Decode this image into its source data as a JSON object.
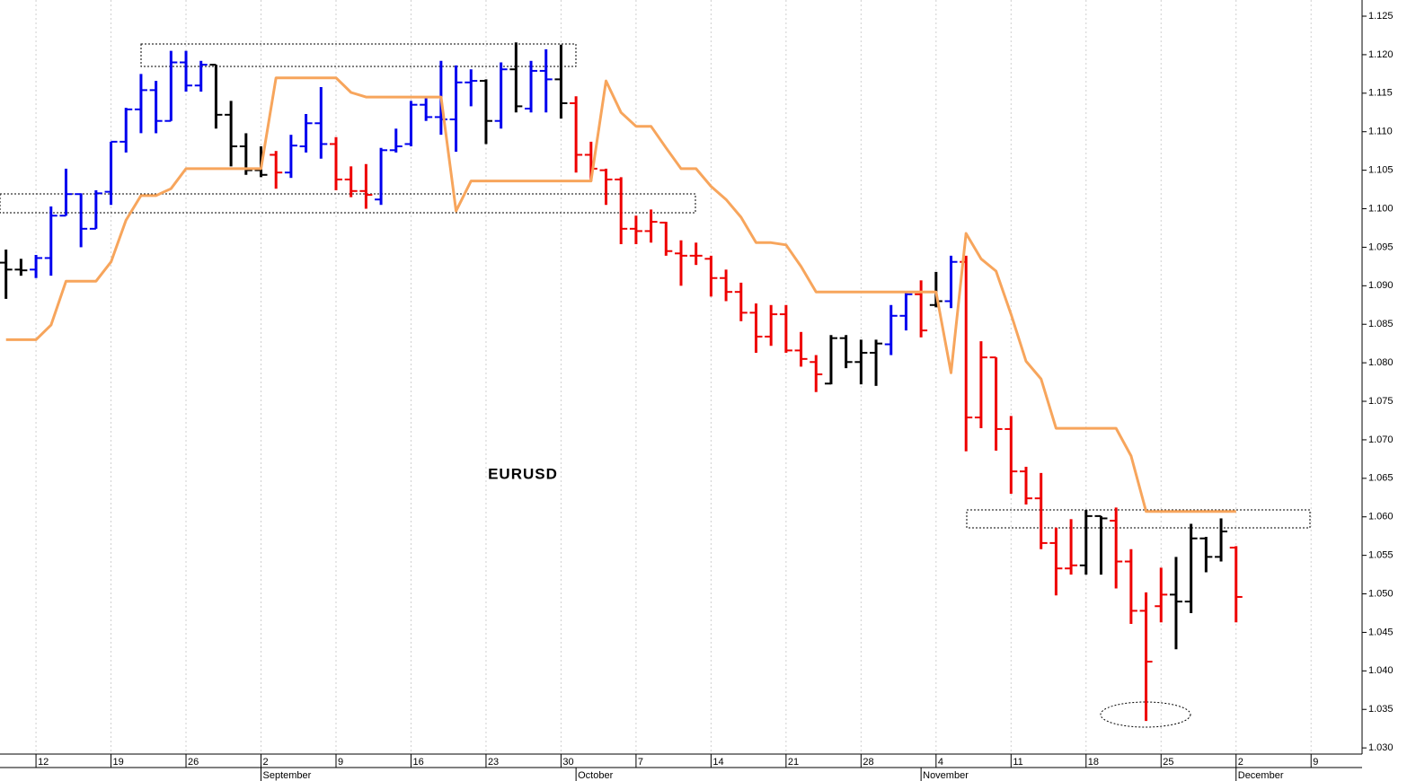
{
  "chart_data": {
    "type": "ohlc",
    "title": "EURUSD",
    "x": [
      -2,
      -1,
      0,
      1,
      2,
      3,
      4,
      5,
      6,
      7,
      8,
      9,
      10,
      11,
      12,
      13,
      14,
      15,
      16,
      17,
      18,
      19,
      20,
      21,
      22,
      23,
      24,
      25,
      26,
      27,
      28,
      29,
      30,
      31,
      32,
      33,
      34,
      35,
      36,
      37,
      38,
      39,
      40,
      41,
      42,
      43,
      44,
      45,
      46,
      47,
      48,
      49,
      50,
      51,
      52,
      53,
      54,
      55,
      56,
      57,
      58,
      59,
      60,
      61,
      62,
      63,
      64,
      65,
      66,
      67,
      68,
      69,
      70,
      71,
      72,
      73,
      74,
      75,
      76,
      77,
      78,
      79,
      80
    ],
    "open": [
      1.093,
      1.0921,
      1.0921,
      1.0936,
      1.0991,
      1.1019,
      1.0974,
      1.1022,
      1.1087,
      1.1129,
      1.1154,
      1.1114,
      1.119,
      1.116,
      1.1187,
      1.1122,
      1.1081,
      1.105,
      1.107,
      1.1047,
      1.1081,
      1.1111,
      1.1084,
      1.1038,
      1.1023,
      1.1012,
      1.1076,
      1.1084,
      1.1135,
      1.1119,
      1.1116,
      1.1164,
      1.1166,
      1.1114,
      1.1181,
      1.113,
      1.1179,
      1.1168,
      1.1137,
      1.107,
      1.105,
      1.1038,
      1.0974,
      1.0971,
      1.0982,
      1.0942,
      1.0939,
      1.0935,
      1.091,
      1.0892,
      1.0865,
      1.0834,
      1.0863,
      1.0816,
      1.0801,
      1.0773,
      1.0832,
      1.0801,
      1.0813,
      1.0824,
      1.0861,
      1.0889,
      1.0875,
      1.088,
      1.0931,
      1.0729,
      1.0807,
      1.0714,
      1.0659,
      1.0624,
      1.0566,
      1.0533,
      1.0537,
      1.0601,
      1.0595,
      1.0542,
      1.0478,
      1.0484,
      1.0499,
      1.049,
      1.0572,
      1.0548,
      1.056
    ],
    "high": [
      1.0947,
      1.0935,
      1.094,
      1.1003,
      1.1052,
      1.102,
      1.1024,
      1.1087,
      1.1131,
      1.1175,
      1.1166,
      1.1205,
      1.1205,
      1.1192,
      1.1187,
      1.114,
      1.1098,
      1.1081,
      1.1075,
      1.1096,
      1.1123,
      1.1158,
      1.1093,
      1.1055,
      1.1058,
      1.1079,
      1.1104,
      1.114,
      1.1146,
      1.1192,
      1.1186,
      1.1181,
      1.1168,
      1.119,
      1.1216,
      1.1192,
      1.1207,
      1.1213,
      1.1146,
      1.1087,
      1.1052,
      1.1041,
      1.0991,
      1.0999,
      1.0983,
      1.0959,
      1.0956,
      1.0939,
      1.0921,
      1.0904,
      1.0877,
      1.0875,
      1.0875,
      1.084,
      1.081,
      1.0836,
      1.0836,
      1.083,
      1.083,
      1.0875,
      1.0892,
      1.0907,
      1.0918,
      1.0939,
      1.0939,
      1.0828,
      1.0807,
      1.0731,
      1.0665,
      1.0657,
      1.0586,
      1.0597,
      1.0609,
      1.0601,
      1.0612,
      1.0558,
      1.0502,
      1.0534,
      1.0548,
      1.0591,
      1.0574,
      1.0598,
      1.0562
    ],
    "low": [
      1.0883,
      1.0913,
      1.091,
      1.0913,
      1.0991,
      1.095,
      1.0974,
      1.1005,
      1.1073,
      1.1098,
      1.1098,
      1.1114,
      1.1152,
      1.1152,
      1.1104,
      1.1055,
      1.1044,
      1.1041,
      1.1026,
      1.104,
      1.1073,
      1.1065,
      1.1024,
      1.1015,
      1.1,
      1.1005,
      1.1073,
      1.1081,
      1.1114,
      1.1096,
      1.1074,
      1.1133,
      1.1084,
      1.1104,
      1.1125,
      1.1125,
      1.1125,
      1.1117,
      1.1047,
      1.1036,
      1.1005,
      1.0954,
      1.0954,
      1.0956,
      1.0939,
      1.09,
      1.0927,
      1.0886,
      1.088,
      1.0854,
      1.0813,
      1.0822,
      1.0813,
      1.0795,
      1.0762,
      1.0772,
      1.0793,
      1.0772,
      1.077,
      1.081,
      1.0842,
      1.0833,
      1.0872,
      1.0871,
      1.0685,
      1.0715,
      1.0686,
      1.063,
      1.0616,
      1.0558,
      1.0498,
      1.0525,
      1.0525,
      1.0525,
      1.0507,
      1.0461,
      1.0335,
      1.0463,
      1.0428,
      1.0475,
      1.0528,
      1.0542,
      1.0463
    ],
    "close": [
      1.0921,
      1.092,
      1.0936,
      1.0991,
      1.1019,
      1.0974,
      1.102,
      1.1087,
      1.1129,
      1.1154,
      1.1114,
      1.119,
      1.116,
      1.1187,
      1.1122,
      1.1081,
      1.105,
      1.1044,
      1.1047,
      1.1082,
      1.1111,
      1.1084,
      1.1038,
      1.1023,
      1.1018,
      1.1076,
      1.1081,
      1.1135,
      1.1119,
      1.1116,
      1.1164,
      1.1166,
      1.1114,
      1.1181,
      1.1133,
      1.1179,
      1.1168,
      1.1137,
      1.107,
      1.1052,
      1.1038,
      1.0974,
      1.0971,
      1.0983,
      1.0945,
      1.0939,
      1.0939,
      1.091,
      1.0892,
      1.0865,
      1.0834,
      1.0863,
      1.0816,
      1.0805,
      1.0785,
      1.0832,
      1.0801,
      1.0813,
      1.0825,
      1.0861,
      1.0889,
      1.0842,
      1.088,
      1.0931,
      1.0729,
      1.0807,
      1.0714,
      1.0659,
      1.0624,
      1.0566,
      1.0533,
      1.0537,
      1.0601,
      1.0598,
      1.0542,
      1.0478,
      1.0412,
      1.0499,
      1.049,
      1.0572,
      1.0548,
      1.0581,
      1.0496
    ],
    "bar_colors": [
      "#000000",
      "#000000",
      "#0000ee",
      "#0000ee",
      "#0000ee",
      "#0000ee",
      "#0000ee",
      "#0000ee",
      "#0000ee",
      "#0000ee",
      "#0000ee",
      "#0000ee",
      "#0000ee",
      "#0000ee",
      "#000000",
      "#000000",
      "#000000",
      "#000000",
      "#ee0000",
      "#0000ee",
      "#0000ee",
      "#0000ee",
      "#ee0000",
      "#ee0000",
      "#ee0000",
      "#0000ee",
      "#0000ee",
      "#0000ee",
      "#0000ee",
      "#0000ee",
      "#0000ee",
      "#0000ee",
      "#000000",
      "#0000ee",
      "#000000",
      "#0000ee",
      "#0000ee",
      "#000000",
      "#ee0000",
      "#ee0000",
      "#ee0000",
      "#ee0000",
      "#ee0000",
      "#ee0000",
      "#ee0000",
      "#ee0000",
      "#ee0000",
      "#ee0000",
      "#ee0000",
      "#ee0000",
      "#ee0000",
      "#ee0000",
      "#ee0000",
      "#ee0000",
      "#ee0000",
      "#000000",
      "#000000",
      "#000000",
      "#000000",
      "#0000ee",
      "#0000ee",
      "#ee0000",
      "#000000",
      "#0000ee",
      "#ee0000",
      "#ee0000",
      "#ee0000",
      "#ee0000",
      "#ee0000",
      "#ee0000",
      "#ee0000",
      "#ee0000",
      "#000000",
      "#000000",
      "#ee0000",
      "#ee0000",
      "#ee0000",
      "#ee0000",
      "#000000",
      "#000000",
      "#000000",
      "#000000",
      "#ee0000"
    ],
    "line": {
      "color": "#f7a55c",
      "values": [
        1.083,
        1.083,
        1.083,
        1.0849,
        1.0906,
        1.0906,
        1.0906,
        1.0931,
        1.0985,
        1.1017,
        1.1017,
        1.1026,
        1.1052,
        1.1052,
        1.1052,
        1.1052,
        1.1052,
        1.1052,
        1.117,
        1.117,
        1.117,
        1.117,
        1.117,
        1.1151,
        1.1145,
        1.1145,
        1.1145,
        1.1145,
        1.1145,
        1.1145,
        1.0997,
        1.1036,
        1.1036,
        1.1036,
        1.1036,
        1.1036,
        1.1036,
        1.1036,
        1.1036,
        1.1036,
        1.1166,
        1.1125,
        1.1107,
        1.1107,
        1.1079,
        1.1052,
        1.1052,
        1.1029,
        1.1012,
        1.0989,
        1.0956,
        1.0956,
        1.0953,
        1.0925,
        1.0892,
        1.0892,
        1.0892,
        1.0892,
        1.0892,
        1.0892,
        1.0892,
        1.0892,
        1.0892,
        1.0787,
        1.0968,
        1.0935,
        1.0919,
        1.0863,
        1.0802,
        1.0779,
        1.0715,
        1.0715,
        1.0715,
        1.0715,
        1.0715,
        1.0679,
        1.0607,
        1.0607,
        1.0607,
        1.0607,
        1.0607,
        1.0607,
        1.0607
      ]
    },
    "xlim": [
      -2.4,
      88.4
    ],
    "ylim": [
      1.0292,
      1.1271
    ],
    "xticks": [
      {
        "value": 0,
        "label": "12"
      },
      {
        "value": 5,
        "label": "19"
      },
      {
        "value": 10,
        "label": "26"
      },
      {
        "value": 15,
        "label": "2"
      },
      {
        "value": 20,
        "label": "9"
      },
      {
        "value": 25,
        "label": "16"
      },
      {
        "value": 30,
        "label": "23"
      },
      {
        "value": 35,
        "label": "30"
      },
      {
        "value": 40,
        "label": "7"
      },
      {
        "value": 45,
        "label": "14"
      },
      {
        "value": 50,
        "label": "21"
      },
      {
        "value": 55,
        "label": "28"
      },
      {
        "value": 60,
        "label": "4"
      },
      {
        "value": 65,
        "label": "11"
      },
      {
        "value": 70,
        "label": "18"
      },
      {
        "value": 75,
        "label": "25"
      },
      {
        "value": 80,
        "label": "2"
      },
      {
        "value": 85,
        "label": "9"
      }
    ],
    "month_ticks": [
      {
        "value": 15,
        "label": "September"
      },
      {
        "value": 36,
        "label": "October"
      },
      {
        "value": 59,
        "label": "November"
      },
      {
        "value": 80,
        "label": "December"
      }
    ],
    "yticks": [
      {
        "value": 1.03,
        "label": "1.030"
      },
      {
        "value": 1.035,
        "label": "1.035"
      },
      {
        "value": 1.04,
        "label": "1.040"
      },
      {
        "value": 1.045,
        "label": "1.045"
      },
      {
        "value": 1.05,
        "label": "1.050"
      },
      {
        "value": 1.055,
        "label": "1.055"
      },
      {
        "value": 1.06,
        "label": "1.060"
      },
      {
        "value": 1.065,
        "label": "1.065"
      },
      {
        "value": 1.07,
        "label": "1.070"
      },
      {
        "value": 1.075,
        "label": "1.075"
      },
      {
        "value": 1.08,
        "label": "1.080"
      },
      {
        "value": 1.085,
        "label": "1.085"
      },
      {
        "value": 1.09,
        "label": "1.090"
      },
      {
        "value": 1.095,
        "label": "1.095"
      },
      {
        "value": 1.1,
        "label": "1.100"
      },
      {
        "value": 1.105,
        "label": "1.105"
      },
      {
        "value": 1.11,
        "label": "1.110"
      },
      {
        "value": 1.115,
        "label": "1.115"
      },
      {
        "value": 1.12,
        "label": "1.120"
      },
      {
        "value": 1.125,
        "label": "1.125"
      }
    ],
    "grid": true
  }
}
